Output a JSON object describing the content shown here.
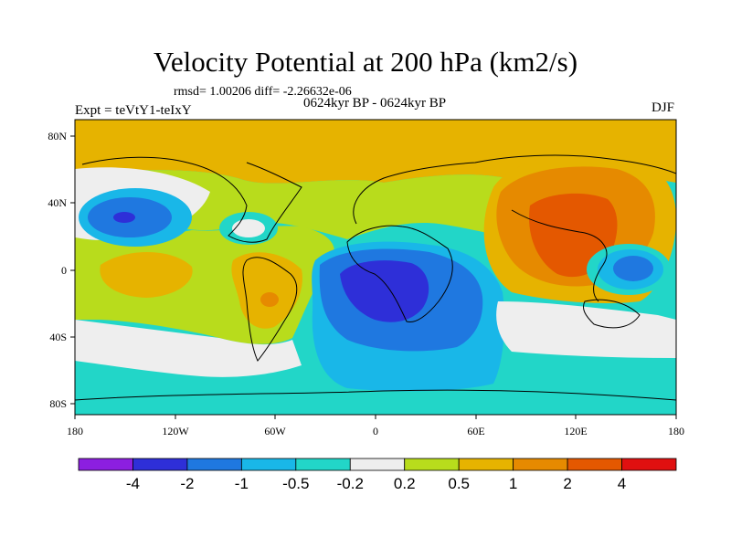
{
  "header": {
    "title": "Velocity Potential at 200 hPa (km2/s)",
    "stats": "rmsd= 1.00206  diff= -2.26632e-06",
    "experiment": "Expt = teVtY1-teIxY",
    "period": "0624kyr BP - 0624kyr BP",
    "season": "DJF"
  },
  "axes": {
    "lat_labels": [
      "80N",
      "40N",
      "0",
      "40S",
      "80S"
    ],
    "lon_labels": [
      "180",
      "120W",
      "60W",
      "0",
      "60E",
      "120E",
      "180"
    ]
  },
  "colorbar": {
    "labels": [
      "-4",
      "-2",
      "-1",
      "-0.5",
      "-0.2",
      "0.2",
      "0.5",
      "1",
      "2",
      "4"
    ],
    "colors": [
      "#8c1fe0",
      "#2e2fd8",
      "#1f78e0",
      "#19b7e8",
      "#22d6c8",
      "#eeeeee",
      "#b8dc1c",
      "#e6b300",
      "#e68a00",
      "#e45800",
      "#e01010"
    ]
  }
}
